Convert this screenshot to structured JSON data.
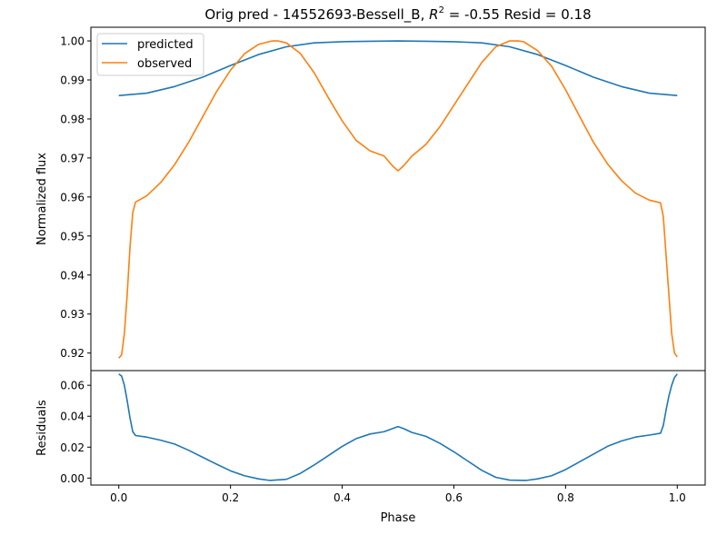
{
  "chart_data": [
    {
      "type": "line",
      "title_prefix": "Orig pred - 14552693-Bessell_B, ",
      "title_r2_symbol": "R",
      "title_r2_sup": "2",
      "title_suffix": " = -0.55 Resid = 0.18",
      "xlabel": "",
      "ylabel": "Normalized flux",
      "xlim": [
        -0.05,
        1.05
      ],
      "ylim": [
        0.9155,
        1.0035
      ],
      "yticks": [
        0.92,
        0.93,
        0.94,
        0.95,
        0.96,
        0.97,
        0.98,
        0.99,
        1.0
      ],
      "ytick_labels": [
        "0.92",
        "0.93",
        "0.94",
        "0.95",
        "0.96",
        "0.97",
        "0.98",
        "0.99",
        "1.00"
      ],
      "legend_position": "top-left",
      "series": [
        {
          "name": "predicted",
          "color": "#1f77b4",
          "x": [
            0,
            0.05,
            0.1,
            0.15,
            0.2,
            0.25,
            0.3,
            0.35,
            0.4,
            0.45,
            0.5,
            0.55,
            0.6,
            0.65,
            0.7,
            0.75,
            0.8,
            0.85,
            0.9,
            0.95,
            1.0
          ],
          "y": [
            0.986,
            0.9866,
            0.9883,
            0.9907,
            0.9937,
            0.9965,
            0.9985,
            0.9995,
            0.9998,
            0.9999,
            1.0,
            0.9999,
            0.9998,
            0.9995,
            0.9985,
            0.9965,
            0.9937,
            0.9907,
            0.9883,
            0.9866,
            0.986
          ]
        },
        {
          "name": "observed",
          "color": "#ff7f0e",
          "x": [
            0,
            0.005,
            0.01,
            0.015,
            0.02,
            0.025,
            0.03,
            0.05,
            0.075,
            0.1,
            0.125,
            0.15,
            0.175,
            0.2,
            0.225,
            0.25,
            0.275,
            0.285,
            0.3,
            0.325,
            0.35,
            0.375,
            0.4,
            0.425,
            0.45,
            0.475,
            0.49,
            0.5,
            0.51,
            0.525,
            0.55,
            0.575,
            0.6,
            0.625,
            0.65,
            0.675,
            0.7,
            0.715,
            0.725,
            0.75,
            0.775,
            0.8,
            0.825,
            0.85,
            0.875,
            0.9,
            0.925,
            0.95,
            0.97,
            0.975,
            0.98,
            0.985,
            0.99,
            0.995,
            1.0
          ],
          "y": [
            0.9187,
            0.9195,
            0.925,
            0.935,
            0.947,
            0.956,
            0.9587,
            0.9603,
            0.9637,
            0.9683,
            0.974,
            0.9805,
            0.987,
            0.9925,
            0.9967,
            0.9991,
            1.0,
            1.0,
            0.9995,
            0.9968,
            0.9918,
            0.9855,
            0.9795,
            0.9745,
            0.9718,
            0.9705,
            0.968,
            0.9667,
            0.968,
            0.9705,
            0.9735,
            0.978,
            0.9835,
            0.989,
            0.9945,
            0.9985,
            1.0,
            1.0,
            0.9998,
            0.9975,
            0.9935,
            0.9875,
            0.9807,
            0.974,
            0.9685,
            0.9642,
            0.961,
            0.9592,
            0.9585,
            0.955,
            0.945,
            0.935,
            0.925,
            0.92,
            0.919
          ]
        }
      ]
    },
    {
      "type": "line",
      "xlabel": "Phase",
      "ylabel": "Residuals",
      "xlim": [
        -0.05,
        1.05
      ],
      "ylim": [
        -0.0045,
        0.0695
      ],
      "xticks": [
        0.0,
        0.2,
        0.4,
        0.6,
        0.8,
        1.0
      ],
      "xtick_labels": [
        "0.0",
        "0.2",
        "0.4",
        "0.6",
        "0.8",
        "1.0"
      ],
      "yticks": [
        0.0,
        0.02,
        0.04,
        0.06
      ],
      "ytick_labels": [
        "0.00",
        "0.02",
        "0.04",
        "0.06"
      ],
      "series": [
        {
          "color": "#1f77b4",
          "x": [
            0,
            0.005,
            0.01,
            0.015,
            0.02,
            0.025,
            0.03,
            0.05,
            0.075,
            0.1,
            0.125,
            0.15,
            0.175,
            0.2,
            0.225,
            0.25,
            0.27,
            0.3,
            0.325,
            0.35,
            0.375,
            0.4,
            0.425,
            0.45,
            0.475,
            0.49,
            0.5,
            0.51,
            0.525,
            0.55,
            0.575,
            0.6,
            0.625,
            0.65,
            0.675,
            0.7,
            0.73,
            0.75,
            0.775,
            0.8,
            0.825,
            0.85,
            0.875,
            0.9,
            0.925,
            0.95,
            0.97,
            0.975,
            0.98,
            0.985,
            0.99,
            0.995,
            1.0
          ],
          "y": [
            0.0673,
            0.066,
            0.06,
            0.05,
            0.039,
            0.03,
            0.0275,
            0.0265,
            0.0245,
            0.022,
            0.018,
            0.0135,
            0.009,
            0.0047,
            0.0015,
            -0.0005,
            -0.0015,
            -0.0008,
            0.003,
            0.0085,
            0.0145,
            0.0205,
            0.0255,
            0.0285,
            0.03,
            0.032,
            0.0333,
            0.032,
            0.0295,
            0.027,
            0.0225,
            0.017,
            0.011,
            0.005,
            0.0005,
            -0.0013,
            -0.0015,
            -0.0005,
            0.0015,
            0.0055,
            0.0105,
            0.0155,
            0.0205,
            0.024,
            0.0265,
            0.0278,
            0.029,
            0.034,
            0.044,
            0.053,
            0.06,
            0.065,
            0.0673
          ]
        }
      ]
    }
  ]
}
